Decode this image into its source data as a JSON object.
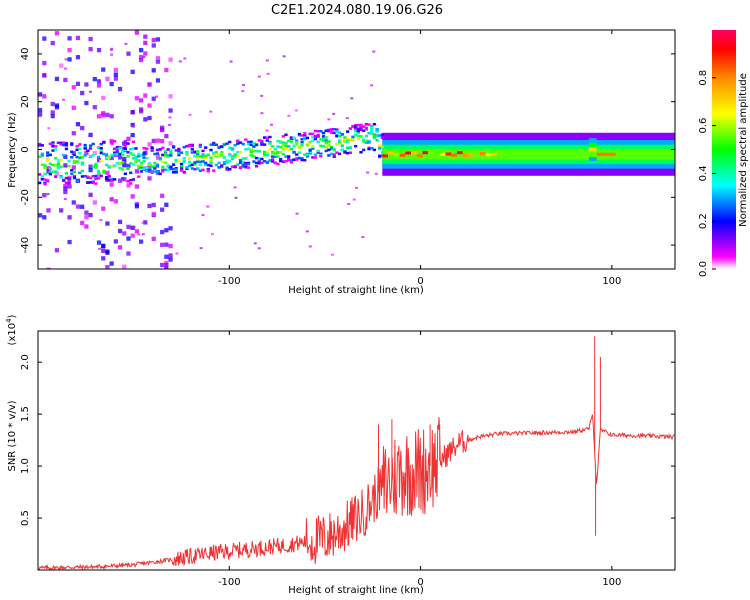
{
  "title": "C2E1.2024.080.19.06.G26",
  "chart_data": [
    {
      "type": "heatmap",
      "name": "spectrogram",
      "xlabel": "Height of straight line (km)",
      "ylabel": "Frequency (Hz)",
      "xlim": [
        -200,
        133
      ],
      "ylim": [
        -50,
        50
      ],
      "xticks": [
        -100,
        0,
        100
      ],
      "yticks": [
        -40,
        -20,
        0,
        20,
        40
      ],
      "xtick_labels": [
        "-100",
        "0",
        "100"
      ],
      "ytick_labels": [
        "-40",
        "-20",
        "0",
        "20",
        "40"
      ],
      "centerline": [
        {
          "x": -200,
          "f": -5
        },
        {
          "x": -150,
          "f": -5
        },
        {
          "x": -100,
          "f": -2
        },
        {
          "x": -60,
          "f": 2
        },
        {
          "x": -40,
          "f": 4
        },
        {
          "x": -25,
          "f": 6
        },
        {
          "x": -20,
          "f": 0
        },
        {
          "x": 133,
          "f": -2
        }
      ],
      "colorbar": {
        "label": "Normalized spectral amplitude",
        "range": [
          0,
          1
        ],
        "ticks": [
          0.0,
          0.2,
          0.4,
          0.6,
          0.8
        ],
        "tick_labels": [
          "0.0",
          "0.2",
          "0.4",
          "0.6",
          "0.8"
        ],
        "colors": [
          "#ffffff",
          "#ff00ff",
          "#0000ff",
          "#00ffff",
          "#00ff00",
          "#ffff00",
          "#ff8800",
          "#ff0000",
          "#ff0066"
        ]
      }
    },
    {
      "type": "line",
      "name": "snr",
      "xlabel": "Height of straight line (km)",
      "ylabel": "SNR (10 * v/v)",
      "y_multiplier": "(x10",
      "y_multiplier_exp": "4",
      "y_multiplier_close": ")",
      "xlim": [
        -200,
        133
      ],
      "ylim": [
        0,
        2.3
      ],
      "xticks": [
        -100,
        0,
        100
      ],
      "yticks": [
        0.5,
        1.0,
        1.5,
        2.0
      ],
      "xtick_labels": [
        "-100",
        "0",
        "100"
      ],
      "ytick_labels": [
        "0.5",
        "1.0",
        "1.5",
        "2.0"
      ],
      "color": "#ee3333",
      "series": [
        {
          "name": "SNR",
          "x": [
            -200,
            -170,
            -150,
            -130,
            -110,
            -90,
            -70,
            -50,
            -40,
            -30,
            -20,
            -10,
            0,
            10,
            20,
            30,
            40,
            60,
            80,
            88,
            90,
            92,
            94,
            100,
            120,
            133
          ],
          "y": [
            0.02,
            0.03,
            0.05,
            0.1,
            0.16,
            0.2,
            0.24,
            0.3,
            0.4,
            0.55,
            0.8,
            0.95,
            0.95,
            1.05,
            1.22,
            1.28,
            1.31,
            1.32,
            1.33,
            1.36,
            1.5,
            0.8,
            1.35,
            1.3,
            1.29,
            1.28
          ]
        }
      ],
      "spikes": [
        {
          "x": 91,
          "y": 2.25
        },
        {
          "x": 91.5,
          "y": 0.33
        },
        {
          "x": 94,
          "y": 2.05
        },
        {
          "x": -22,
          "y": 1.4
        },
        {
          "x": -15,
          "y": 1.45
        },
        {
          "x": 5,
          "y": 1.4
        },
        {
          "x": 10,
          "y": 1.4
        }
      ]
    }
  ]
}
